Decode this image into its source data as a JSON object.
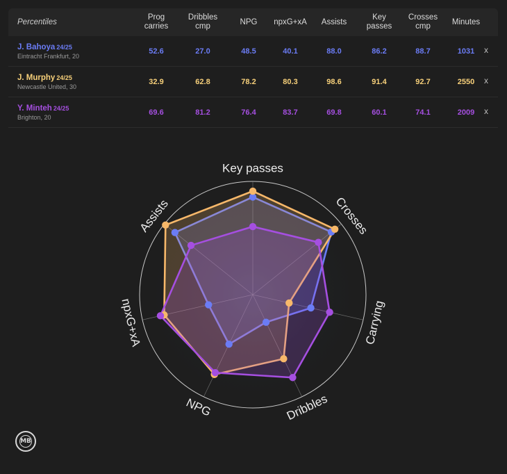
{
  "table": {
    "header_first": "Percentiles",
    "headers": [
      "Prog\ncarries",
      "Dribbles\ncmp",
      "NPG",
      "npxG+xA",
      "Assists",
      "Key\npasses",
      "Crosses\ncmp",
      "Minutes"
    ],
    "remove_label": "x",
    "players": [
      {
        "name": "J. Bahoya",
        "season": "24/25",
        "club": "Eintracht Frankfurt, 20",
        "color": "#6b7cf5",
        "values": [
          "52.6",
          "27.0",
          "48.5",
          "40.1",
          "88.0",
          "86.2",
          "88.7",
          "1031"
        ]
      },
      {
        "name": "J. Murphy",
        "season": "24/25",
        "club": "Newcastle United, 30",
        "color": "#f7d07a",
        "values": [
          "32.9",
          "62.8",
          "78.2",
          "80.3",
          "98.6",
          "91.4",
          "92.7",
          "2550"
        ]
      },
      {
        "name": "Y. Minteh",
        "season": "24/25",
        "club": "Brighton, 20",
        "color": "#a54fe0",
        "values": [
          "69.6",
          "81.2",
          "76.4",
          "83.7",
          "69.8",
          "60.1",
          "74.1",
          "2009"
        ]
      }
    ]
  },
  "chart_data": {
    "type": "radar",
    "axes": [
      "Key passes",
      "Crosses",
      "Carrying",
      "Dribbles",
      "NPG",
      "npxG+xA",
      "Assists"
    ],
    "range": [
      0,
      100
    ],
    "series": [
      {
        "name": "J. Bahoya",
        "color": "#6b7cf5",
        "values": [
          86.2,
          88.7,
          52.6,
          27.0,
          48.5,
          40.1,
          88.0
        ]
      },
      {
        "name": "J. Murphy",
        "color": "#f7b86a",
        "values": [
          91.4,
          92.7,
          32.9,
          62.8,
          78.2,
          80.3,
          98.6
        ]
      },
      {
        "name": "Y. Minteh",
        "color": "#a54fe0",
        "values": [
          60.1,
          74.1,
          69.6,
          81.2,
          76.4,
          83.7,
          69.8
        ]
      }
    ]
  },
  "logo": {
    "text": "MB"
  }
}
